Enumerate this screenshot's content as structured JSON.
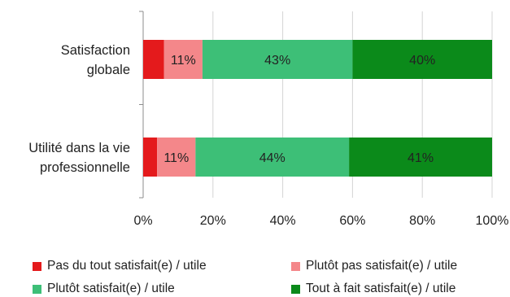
{
  "chart_data": {
    "type": "bar",
    "orientation": "horizontal",
    "stacked": "percent",
    "title": "",
    "xlabel": "",
    "ylabel": "",
    "xlim": [
      0,
      100
    ],
    "x_ticks": [
      "0%",
      "20%",
      "40%",
      "60%",
      "80%",
      "100%"
    ],
    "grid": "vertical",
    "legend_position": "bottom",
    "categories": [
      {
        "lines": [
          "Satisfaction",
          "globale"
        ]
      },
      {
        "lines": [
          "Utilité dans la vie",
          "professionnelle"
        ]
      }
    ],
    "series": [
      {
        "name": "Pas du tout satisfait(e) / utile",
        "color": "#e41a1c",
        "values": [
          6,
          4
        ],
        "labels": [
          "",
          ""
        ]
      },
      {
        "name": "Plutôt pas satisfait(e) / utile",
        "color": "#f4878a",
        "values": [
          11,
          11
        ],
        "labels": [
          "11%",
          "11%"
        ]
      },
      {
        "name": "Plutôt satisfait(e) / utile",
        "color": "#3dbf77",
        "values": [
          43,
          44
        ],
        "labels": [
          "43%",
          "44%"
        ]
      },
      {
        "name": "Tout à fait satisfait(e) / utile",
        "color": "#0b8a1a",
        "values": [
          40,
          41
        ],
        "labels": [
          "40%",
          "41%"
        ]
      }
    ]
  }
}
